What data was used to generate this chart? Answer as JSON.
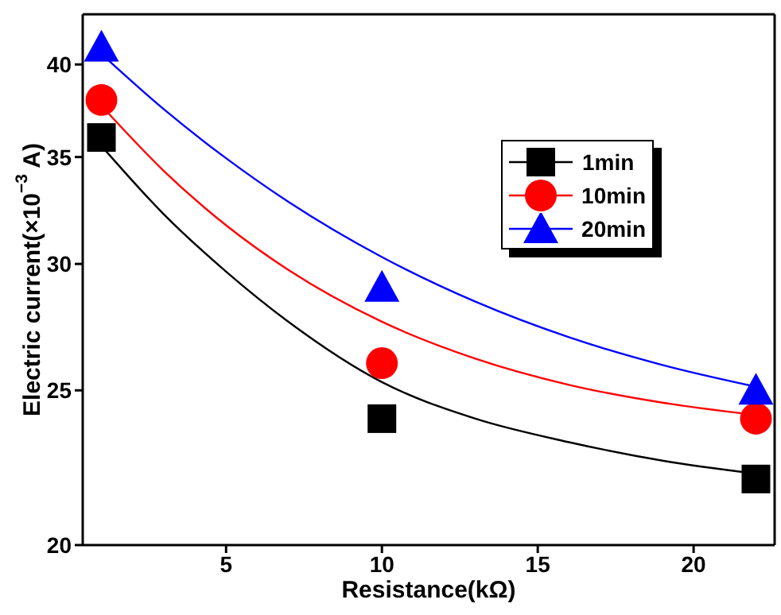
{
  "chart_data": {
    "type": "scatter",
    "xlabel": "Resistance(kΩ)",
    "ylabel": "Electric current(×10$^{−3}$ A)",
    "xlim": [
      0.4,
      22.6
    ],
    "xticks": [
      5,
      10,
      15,
      20
    ],
    "ylim": [
      20,
      43
    ],
    "yticks": [
      20,
      25,
      30,
      35,
      40
    ],
    "log": "y",
    "grid": false,
    "legend": "top right",
    "series": [
      {
        "name": "1min",
        "color": "#000000",
        "marker": "square",
        "x": [
          1,
          10,
          22
        ],
        "values": [
          36,
          24,
          22
        ]
      },
      {
        "name": "10min",
        "color": "#ff0000",
        "marker": "circle",
        "x": [
          1,
          10,
          22
        ],
        "values": [
          38,
          26,
          24
        ]
      },
      {
        "name": "20min",
        "color": "#0000ff",
        "marker": "triangle",
        "x": [
          1,
          10,
          22
        ],
        "values": [
          41,
          29,
          25
        ]
      },
      {
        "type": "line",
        "color": "#000000",
        "marker": "none",
        "x": [
          1,
          3,
          5,
          7,
          10,
          13,
          16,
          19,
          22
        ],
        "values": [
          35.57,
          32.23,
          29.67,
          27.6,
          25.3,
          24.0,
          23.2,
          22.59,
          22.17
        ]
      },
      {
        "type": "line",
        "color": "#ff0000",
        "marker": "none",
        "x": [
          1,
          3,
          5,
          7,
          10,
          13,
          16,
          19,
          22
        ],
        "values": [
          37.69,
          34.31,
          31.72,
          29.74,
          27.6,
          26.17,
          25.2,
          24.56,
          24.13
        ]
      },
      {
        "type": "line",
        "color": "#0000ff",
        "marker": "none",
        "x": [
          1,
          3,
          5,
          7,
          10,
          13,
          16,
          19,
          22
        ],
        "values": [
          40.61,
          37.5,
          34.94,
          32.81,
          30.3,
          28.41,
          26.99,
          25.93,
          25.13
        ]
      }
    ]
  }
}
